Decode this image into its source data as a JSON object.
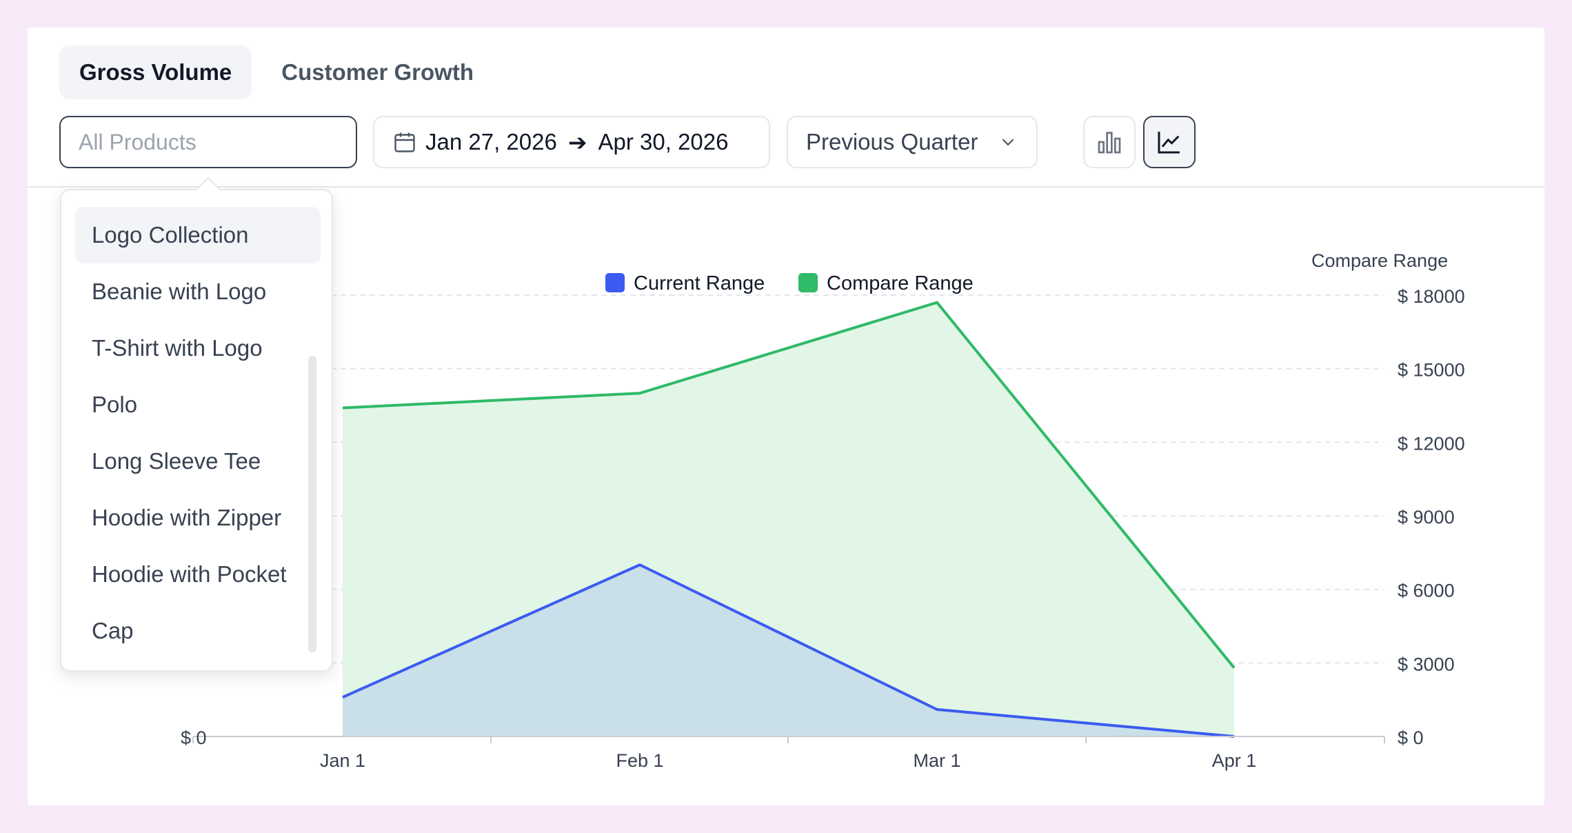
{
  "tabs": [
    {
      "label": "Gross Volume",
      "active": true
    },
    {
      "label": "Customer Growth",
      "active": false
    }
  ],
  "filters": {
    "products_placeholder": "All Products",
    "date_start": "Jan 27, 2026",
    "date_end": "Apr 30, 2026",
    "period_selected": "Previous Quarter"
  },
  "icons": {
    "calendar": "calendar-icon",
    "arrow": "arrow-right-icon",
    "chevron": "chevron-down-icon",
    "bar_toggle": "bar-chart-icon",
    "line_toggle": "line-chart-icon"
  },
  "dropdown": {
    "items": [
      "Logo Collection",
      "Beanie with Logo",
      "T-Shirt with Logo",
      "Polo",
      "Long Sleeve Tee",
      "Hoodie with Zipper",
      "Hoodie with Pocket",
      "Cap"
    ],
    "highlighted": "Logo Collection"
  },
  "chart_data": {
    "type": "area",
    "categories": [
      "Jan 1",
      "Feb 1",
      "Mar 1",
      "Apr 1"
    ],
    "series": [
      {
        "name": "Current Range",
        "color": "#3b5bf0",
        "fill": "#c9dfe9",
        "axis": "left",
        "values": [
          1600,
          7000,
          1100,
          0
        ]
      },
      {
        "name": "Compare Range",
        "color": "#2fba68",
        "fill": "#e2f6e8",
        "axis": "right",
        "values": [
          13400,
          14000,
          17700,
          2800
        ]
      }
    ],
    "left_axis": {
      "visible_tick_label": "$ 0",
      "ylim": [
        0,
        18000
      ]
    },
    "right_axis": {
      "title": "Compare Range",
      "ticks": [
        "$ 0",
        "$ 3000",
        "$ 6000",
        "$ 9000",
        "$ 12000",
        "$ 15000",
        "$ 18000"
      ],
      "ylim": [
        0,
        18000
      ]
    },
    "legend_position": "top-center",
    "grid": true
  }
}
